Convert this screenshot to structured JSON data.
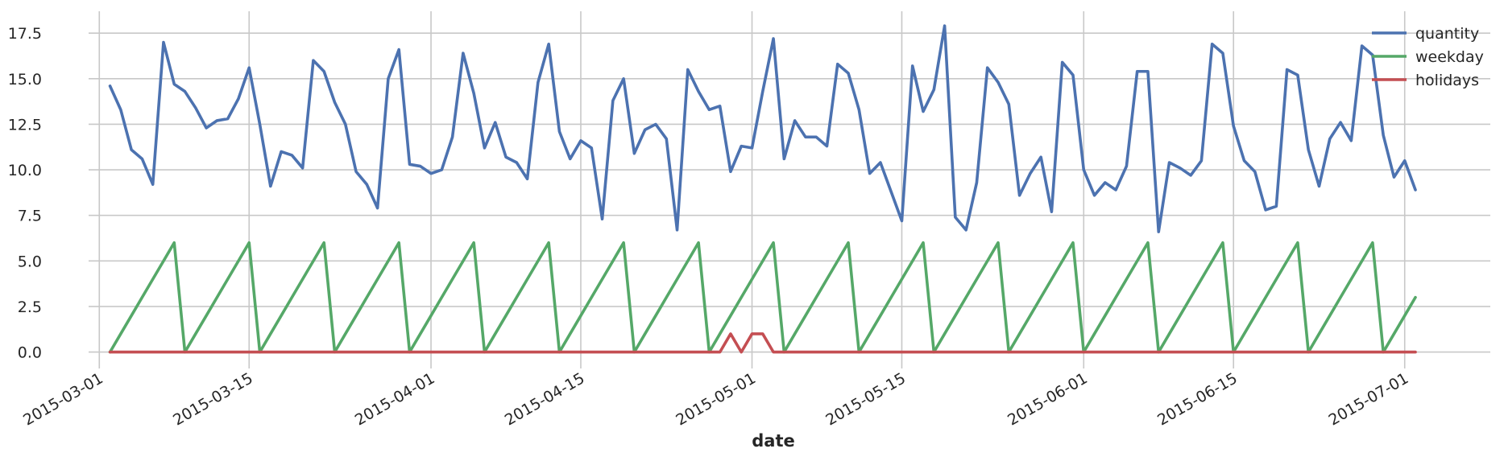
{
  "chart_data": {
    "type": "line",
    "xlabel": "date",
    "ylabel": "",
    "x_start": "2015-03-02",
    "x_end": "2015-07-02",
    "xlim": [
      "2015-02-28",
      "2015-07-09"
    ],
    "ylim": [
      -0.9,
      18.7
    ],
    "grid": true,
    "legend_position": "top-right",
    "x_ticks": [
      "2015-03-01",
      "2015-03-15",
      "2015-04-01",
      "2015-04-15",
      "2015-05-01",
      "2015-05-15",
      "2015-06-01",
      "2015-06-15",
      "2015-07-01"
    ],
    "y_ticks": [
      "0.0",
      "2.5",
      "5.0",
      "7.5",
      "10.0",
      "12.5",
      "15.0",
      "17.5"
    ],
    "series": [
      {
        "name": "quantity",
        "color": "#4c72b0",
        "values": [
          14.6,
          13.3,
          11.1,
          10.6,
          9.2,
          17.0,
          14.7,
          14.3,
          13.4,
          12.3,
          12.7,
          12.8,
          13.9,
          15.6,
          12.5,
          9.1,
          11.0,
          10.8,
          10.1,
          16.0,
          15.4,
          13.7,
          12.5,
          9.9,
          9.2,
          7.9,
          15.0,
          16.6,
          10.3,
          10.2,
          9.8,
          10.0,
          11.8,
          16.4,
          14.2,
          11.2,
          12.6,
          10.7,
          10.4,
          9.5,
          14.8,
          16.9,
          12.1,
          10.6,
          11.6,
          11.2,
          7.3,
          13.8,
          15.0,
          10.9,
          12.2,
          12.5,
          11.7,
          6.7,
          15.5,
          14.3,
          13.3,
          13.5,
          9.9,
          11.3,
          11.2,
          14.3,
          17.2,
          10.6,
          12.7,
          11.8,
          11.8,
          11.3,
          15.8,
          15.3,
          13.3,
          9.8,
          10.4,
          8.8,
          7.2,
          15.7,
          13.2,
          14.4,
          17.9,
          7.4,
          6.7,
          9.3,
          15.6,
          14.8,
          13.6,
          8.6,
          9.8,
          10.7,
          7.7,
          15.9,
          15.2,
          10.0,
          8.6,
          9.3,
          8.9,
          10.2,
          15.4,
          15.4,
          6.6,
          10.4,
          10.1,
          9.7,
          10.5,
          16.9,
          16.4,
          12.4,
          10.5,
          9.9,
          7.8,
          8.0,
          15.5,
          15.2,
          11.1,
          9.1,
          11.7,
          12.6,
          11.6,
          16.8,
          16.3,
          11.9,
          9.6,
          10.5,
          8.9
        ]
      },
      {
        "name": "weekday",
        "color": "#55a868",
        "values": [
          0,
          1,
          2,
          3,
          4,
          5,
          6,
          0,
          1,
          2,
          3,
          4,
          5,
          6,
          0,
          1,
          2,
          3,
          4,
          5,
          6,
          0,
          1,
          2,
          3,
          4,
          5,
          6,
          0,
          1,
          2,
          3,
          4,
          5,
          6,
          0,
          1,
          2,
          3,
          4,
          5,
          6,
          0,
          1,
          2,
          3,
          4,
          5,
          6,
          0,
          1,
          2,
          3,
          4,
          5,
          6,
          0,
          1,
          2,
          3,
          4,
          5,
          6,
          0,
          1,
          2,
          3,
          4,
          5,
          6,
          0,
          1,
          2,
          3,
          4,
          5,
          6,
          0,
          1,
          2,
          3,
          4,
          5,
          6,
          0,
          1,
          2,
          3,
          4,
          5,
          6,
          0,
          1,
          2,
          3,
          4,
          5,
          6,
          0,
          1,
          2,
          3,
          4,
          5,
          6,
          0,
          1,
          2,
          3,
          4,
          5,
          6,
          0,
          1,
          2,
          3,
          4,
          5,
          6,
          0,
          1,
          2,
          3
        ]
      },
      {
        "name": "holidays",
        "color": "#c44e52",
        "values": [
          0,
          0,
          0,
          0,
          0,
          0,
          0,
          0,
          0,
          0,
          0,
          0,
          0,
          0,
          0,
          0,
          0,
          0,
          0,
          0,
          0,
          0,
          0,
          0,
          0,
          0,
          0,
          0,
          0,
          0,
          0,
          0,
          0,
          0,
          0,
          0,
          0,
          0,
          0,
          0,
          0,
          0,
          0,
          0,
          0,
          0,
          0,
          0,
          0,
          0,
          0,
          0,
          0,
          0,
          0,
          0,
          0,
          0,
          1,
          0,
          1,
          1,
          0,
          0,
          0,
          0,
          0,
          0,
          0,
          0,
          0,
          0,
          0,
          0,
          0,
          0,
          0,
          0,
          0,
          0,
          0,
          0,
          0,
          0,
          0,
          0,
          0,
          0,
          0,
          0,
          0,
          0,
          0,
          0,
          0,
          0,
          0,
          0,
          0,
          0,
          0,
          0,
          0,
          0,
          0,
          0,
          0,
          0,
          0,
          0,
          0,
          0,
          0,
          0,
          0,
          0,
          0,
          0,
          0,
          0,
          0,
          0,
          0
        ]
      }
    ]
  }
}
